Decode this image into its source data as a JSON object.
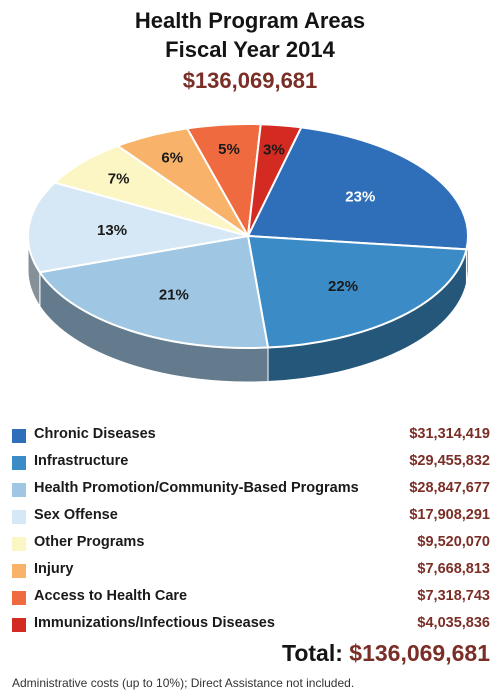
{
  "title": {
    "line1": "Health Program Areas",
    "line2": "Fiscal Year 2014",
    "amount": "$136,069,681"
  },
  "chart_data": {
    "type": "pie",
    "title": "Health Program Areas Fiscal Year 2014",
    "total_label": "Total:",
    "total": "$136,069,681",
    "slices": [
      {
        "label": "Chronic Diseases",
        "value": 31314419,
        "value_text": "$31,314,419",
        "percent_text": "23%",
        "color": "#2f6fba"
      },
      {
        "label": "Infrastructure",
        "value": 29455832,
        "value_text": "$29,455,832",
        "percent_text": "22%",
        "color": "#3b8cc6"
      },
      {
        "label": "Health Promotion/Community-Based Programs",
        "value": 28847677,
        "value_text": "$28,847,677",
        "percent_text": "21%",
        "color": "#9fc6e2"
      },
      {
        "label": "Sex Offense",
        "value": 17908291,
        "value_text": "$17,908,291",
        "percent_text": "13%",
        "color": "#d6e8f5"
      },
      {
        "label": "Other Programs",
        "value": 9520070,
        "value_text": "$9,520,070",
        "percent_text": "7%",
        "color": "#fbf6c3"
      },
      {
        "label": "Injury",
        "value": 7668813,
        "value_text": "$7,668,813",
        "percent_text": "6%",
        "color": "#f8b26a"
      },
      {
        "label": "Access to Health Care",
        "value": 7318743,
        "value_text": "$7,318,743",
        "percent_text": "5%",
        "color": "#ef6a3e"
      },
      {
        "label": "Immunizations/Infectious Diseases",
        "value": 4035836,
        "value_text": "$4,035,836",
        "percent_text": "3%",
        "color": "#d32b22"
      }
    ]
  },
  "footnote": "Administrative costs (up to 10%); Direct Assistance not included."
}
